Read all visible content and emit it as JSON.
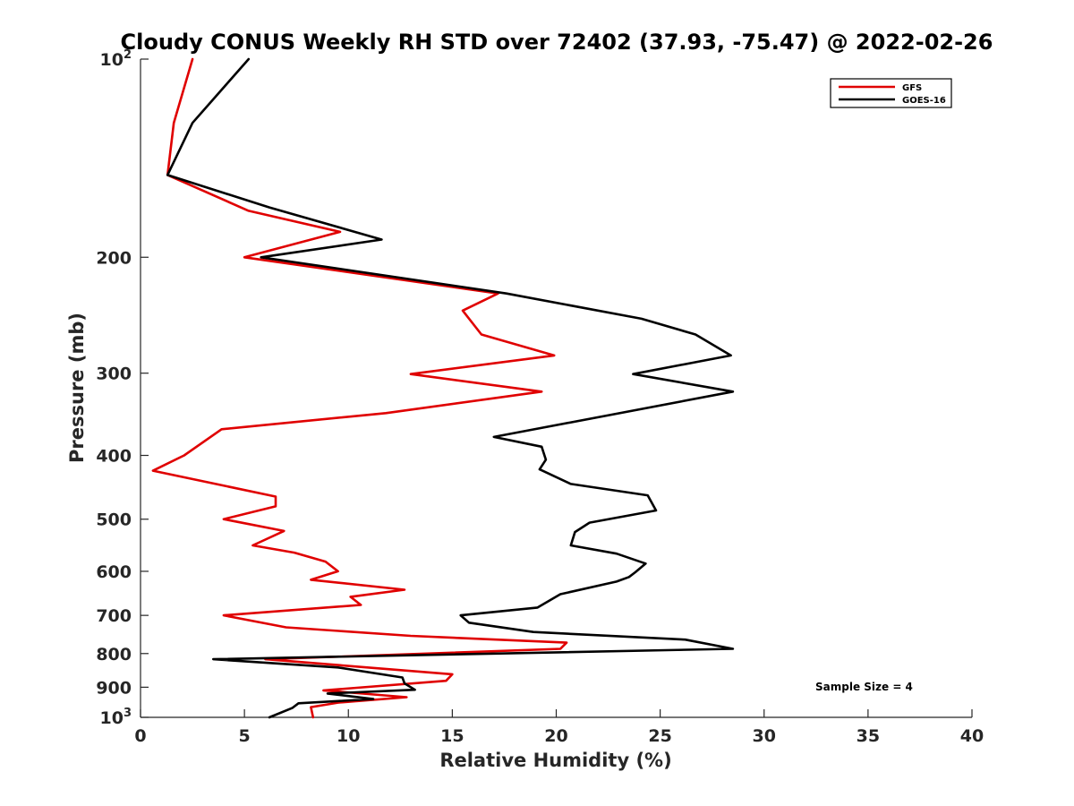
{
  "chart_data": {
    "type": "line",
    "title": "Cloudy CONUS Weekly RH STD over 72402 (37.93, -75.47) @ 2022-02-26",
    "xlabel": "Relative Humidity (%)",
    "ylabel": "Pressure (mb)",
    "xlim": [
      0,
      40
    ],
    "ylim": [
      100,
      1000
    ],
    "y_scale": "log",
    "y_reversed": true,
    "grid": false,
    "legend_position": "top-right",
    "x_ticks": [
      "0",
      "5",
      "10",
      "15",
      "20",
      "25",
      "30",
      "35",
      "40"
    ],
    "y_ticks": [
      {
        "value": 100,
        "base": "10",
        "exp": "2"
      },
      {
        "value": 200,
        "label": "200"
      },
      {
        "value": 300,
        "label": "300"
      },
      {
        "value": 400,
        "label": "400"
      },
      {
        "value": 500,
        "label": "500"
      },
      {
        "value": 600,
        "label": "600"
      },
      {
        "value": 700,
        "label": "700"
      },
      {
        "value": 800,
        "label": "800"
      },
      {
        "value": 900,
        "label": "900"
      },
      {
        "value": 1000,
        "base": "10",
        "exp": "3"
      }
    ],
    "series": [
      {
        "name": "GFS",
        "color": "#e00000",
        "points": [
          [
            2.5,
            100
          ],
          [
            1.6,
            125
          ],
          [
            1.3,
            150
          ],
          [
            5.2,
            170
          ],
          [
            9.6,
            183
          ],
          [
            5.0,
            200
          ],
          [
            17.2,
            227
          ],
          [
            15.5,
            241
          ],
          [
            16.4,
            262
          ],
          [
            19.9,
            282
          ],
          [
            13.0,
            301
          ],
          [
            19.3,
            320
          ],
          [
            11.8,
            345
          ],
          [
            3.9,
            365
          ],
          [
            2.1,
            400
          ],
          [
            0.6,
            422
          ],
          [
            6.5,
            462
          ],
          [
            6.5,
            478
          ],
          [
            4.0,
            500
          ],
          [
            6.9,
            521
          ],
          [
            5.4,
            548
          ],
          [
            7.4,
            562
          ],
          [
            8.9,
            580
          ],
          [
            9.5,
            600
          ],
          [
            8.2,
            618
          ],
          [
            12.7,
            640
          ],
          [
            10.1,
            656
          ],
          [
            10.6,
            675
          ],
          [
            4.0,
            700
          ],
          [
            7.0,
            730
          ],
          [
            13.0,
            752
          ],
          [
            20.5,
            770
          ],
          [
            20.2,
            787
          ],
          [
            6.0,
            816
          ],
          [
            15.0,
            860
          ],
          [
            14.7,
            880
          ],
          [
            8.8,
            910
          ],
          [
            12.8,
            932
          ],
          [
            9.5,
            950
          ],
          [
            8.2,
            965
          ],
          [
            8.3,
            1000
          ]
        ]
      },
      {
        "name": "GOES-16",
        "color": "#000000",
        "points": [
          [
            5.2,
            100
          ],
          [
            2.5,
            125
          ],
          [
            1.3,
            150
          ],
          [
            6.2,
            168
          ],
          [
            11.6,
            188
          ],
          [
            5.8,
            200
          ],
          [
            17.6,
            227
          ],
          [
            24.1,
            248
          ],
          [
            26.7,
            262
          ],
          [
            28.4,
            282
          ],
          [
            23.7,
            301
          ],
          [
            28.5,
            320
          ],
          [
            17.0,
            375
          ],
          [
            19.3,
            388
          ],
          [
            19.5,
            406
          ],
          [
            19.2,
            420
          ],
          [
            20.7,
            442
          ],
          [
            24.4,
            460
          ],
          [
            24.8,
            485
          ],
          [
            21.6,
            506
          ],
          [
            20.9,
            523
          ],
          [
            20.7,
            548
          ],
          [
            22.9,
            564
          ],
          [
            24.3,
            584
          ],
          [
            23.8,
            602
          ],
          [
            23.5,
            612
          ],
          [
            22.9,
            622
          ],
          [
            20.2,
            650
          ],
          [
            19.1,
            681
          ],
          [
            15.4,
            700
          ],
          [
            15.8,
            718
          ],
          [
            18.9,
            742
          ],
          [
            26.2,
            762
          ],
          [
            28.5,
            787
          ],
          [
            3.5,
            816
          ],
          [
            9.5,
            840
          ],
          [
            12.6,
            870
          ],
          [
            12.7,
            888
          ],
          [
            13.2,
            908
          ],
          [
            9.0,
            920
          ],
          [
            11.2,
            938
          ],
          [
            7.6,
            952
          ],
          [
            7.3,
            968
          ],
          [
            6.2,
            1000
          ]
        ]
      }
    ],
    "legend": [
      {
        "label": "GFS",
        "color": "#e00000"
      },
      {
        "label": "GOES-16",
        "color": "#000000"
      }
    ],
    "annotation": "Sample Size = 4"
  }
}
